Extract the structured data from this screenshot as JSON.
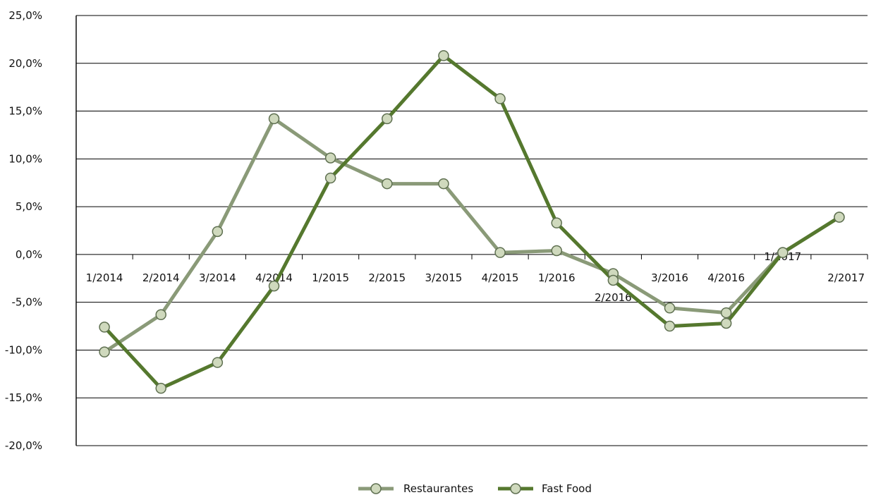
{
  "chart_data": {
    "type": "line",
    "title": "",
    "xlabel": "",
    "ylabel": "",
    "ylim": [
      -20,
      25
    ],
    "ytick_step": 5,
    "ytick_labels": [
      "25,0%",
      "20,0%",
      "15,0%",
      "10,0%",
      "5,0%",
      "0,0%",
      "-5,0%",
      "-10,0%",
      "-15,0%",
      "-20,0%"
    ],
    "categories": [
      "1/2014",
      "2/2014",
      "3/2014",
      "4/2014",
      "1/2015",
      "2/2015",
      "3/2015",
      "4/2015",
      "1/2016",
      "2/2016",
      "3/2016",
      "4/2016",
      "1/2017",
      "2/2017"
    ],
    "grid": true,
    "legend_position": "bottom",
    "series": [
      {
        "name": "Restaurantes",
        "color": "#8a9a78",
        "values": [
          -10.2,
          -6.3,
          2.4,
          14.2,
          10.1,
          7.4,
          7.4,
          0.2,
          0.4,
          -2.0,
          -5.6,
          -6.1,
          0.2,
          3.9
        ]
      },
      {
        "name": "Fast Food",
        "color": "#55782e",
        "values": [
          -7.6,
          -14.0,
          -11.3,
          -3.3,
          8.0,
          14.2,
          20.8,
          16.3,
          3.3,
          -2.7,
          -7.5,
          -7.2,
          0.2,
          3.9
        ]
      }
    ],
    "marker_fill": "#cfd9bd",
    "marker_stroke": "#5e6f50"
  }
}
